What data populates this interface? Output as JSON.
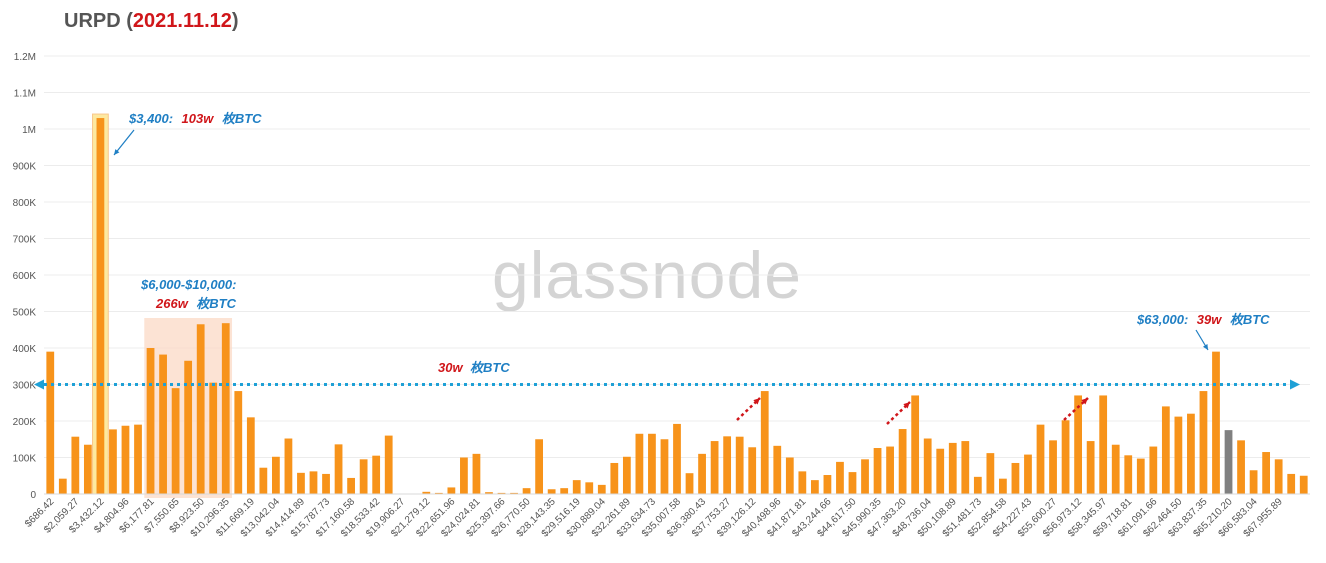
{
  "title": {
    "main": "URPD (",
    "date": "2021.11.12",
    "close": ")"
  },
  "watermark": "glassnode",
  "colors": {
    "bar": "#f7931a",
    "bar_current": "#808080",
    "highlight_fill": "#fbd9c6",
    "highlight_border": "#f9c78a",
    "highlight_glow": "#fde9a0",
    "annotation_blue": "#1f7fc4",
    "annotation_red": "#d0161a",
    "dotted_line": "#1ea0d6"
  },
  "annotations": {
    "a1": {
      "price": "$3,400:",
      "amount": "103w",
      "unit": "枚BTC"
    },
    "a2": {
      "line1": "$6,000-$10,000:",
      "amount": "266w",
      "unit": "枚BTC"
    },
    "a3": {
      "price": "$63,000:",
      "amount": "39w",
      "unit": "枚BTC"
    },
    "a4": {
      "amount": "30w",
      "unit": "枚BTC"
    }
  },
  "chart_data": {
    "type": "bar",
    "title": "URPD (2021.11.12)",
    "ylim": [
      0,
      1200000
    ],
    "yticks": [
      {
        "v": 0,
        "label": "0"
      },
      {
        "v": 100000,
        "label": "100K"
      },
      {
        "v": 200000,
        "label": "200K"
      },
      {
        "v": 300000,
        "label": "300K"
      },
      {
        "v": 400000,
        "label": "400K"
      },
      {
        "v": 500000,
        "label": "500K"
      },
      {
        "v": 600000,
        "label": "600K"
      },
      {
        "v": 700000,
        "label": "700K"
      },
      {
        "v": 800000,
        "label": "800K"
      },
      {
        "v": 900000,
        "label": "900K"
      },
      {
        "v": 1000000,
        "label": "1M"
      },
      {
        "v": 1100000,
        "label": "1.1M"
      },
      {
        "v": 1200000,
        "label": "1.2M"
      }
    ],
    "xtick_labels": [
      "$686.42",
      "$2,059.27",
      "$3,432.12",
      "$4,804.96",
      "$6,177.81",
      "$7,550.65",
      "$8,923.50",
      "$10,296.35",
      "$11,669.19",
      "$13,042.04",
      "$14,414.89",
      "$15,787.73",
      "$17,160.58",
      "$18,533.42",
      "$19,906.27",
      "$21,279.12",
      "$22,651.96",
      "$24,024.81",
      "$25,397.66",
      "$26,770.50",
      "$28,143.35",
      "$29,516.19",
      "$30,889.04",
      "$32,261.89",
      "$33,634.73",
      "$35,007.58",
      "$36,380.43",
      "$37,753.27",
      "$39,126.12",
      "$40,498.96",
      "$41,871.81",
      "$43,244.66",
      "$44,617.50",
      "$45,990.35",
      "$47,363.20",
      "$48,736.04",
      "$50,108.89",
      "$51,481.73",
      "$52,854.58",
      "$54,227.43",
      "$55,600.27",
      "$56,973.12",
      "$58,345.97",
      "$59,718.81",
      "$61,091.66",
      "$62,464.50",
      "$63,837.35",
      "$65,210.20",
      "$66,583.04",
      "$67,955.89"
    ],
    "values": [
      390000,
      42000,
      157000,
      135000,
      1030000,
      177000,
      187000,
      190000,
      400000,
      382000,
      290000,
      365000,
      465000,
      305000,
      468000,
      282000,
      210000,
      72000,
      102000,
      152000,
      58000,
      62000,
      55000,
      136000,
      44000,
      95000,
      105000,
      160000,
      0,
      0,
      6000,
      3000,
      18000,
      100000,
      110000,
      5000,
      3000,
      3000,
      16000,
      150000,
      13000,
      16000,
      38000,
      32000,
      25000,
      85000,
      102000,
      165000,
      165000,
      150000,
      192000,
      57000,
      110000,
      145000,
      158000,
      157000,
      128000,
      282000,
      132000,
      100000,
      62000,
      38000,
      52000,
      88000,
      60000,
      95000,
      126000,
      130000,
      178000,
      270000,
      152000,
      124000,
      140000,
      145000,
      47000,
      112000,
      42000,
      85000,
      108000,
      190000,
      147000,
      202000,
      270000,
      145000,
      270000,
      135000,
      106000,
      97000,
      130000,
      240000,
      212000,
      220000,
      282000,
      390000,
      175000,
      147000,
      65000,
      115000,
      95000,
      55000,
      50000
    ],
    "current_index": 94,
    "reference_line": 300000
  }
}
